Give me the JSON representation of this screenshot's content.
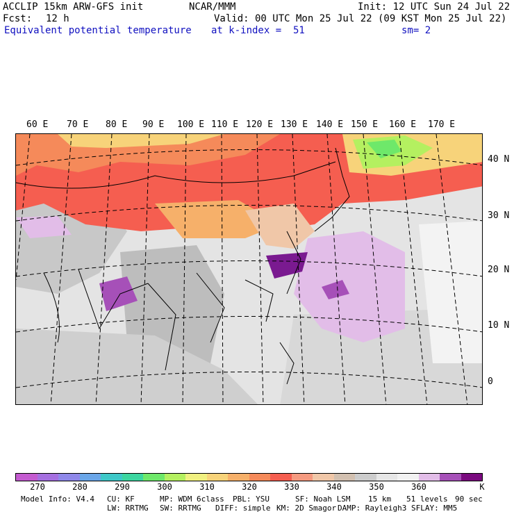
{
  "header": {
    "model_line": "ACCLIP 15km ARW-GFS init",
    "org": "NCAR/MMM",
    "init": "Init: 12 UTC Sun 24 Jul 22",
    "fcst_label": "Fcst:",
    "fcst_value": "12 h",
    "valid": "Valid: 00 UTC Mon 25 Jul 22 (09 KST Mon 25 Jul 22)",
    "field": "Equivalent potential temperature",
    "level": "at k-index =  51",
    "smoothing": "sm= 2"
  },
  "map": {
    "longitude_labels": [
      "60 E",
      "70 E",
      "80 E",
      "90 E",
      "100 E",
      "110 E",
      "120 E",
      "130 E",
      "140 E",
      "150 E",
      "160 E",
      "170 E"
    ],
    "latitude_labels": [
      "40 N",
      "30 N",
      "20 N",
      "10 N",
      "0"
    ]
  },
  "colorbar": {
    "colors": [
      "#c45bd0",
      "#a56fe0",
      "#8f88ea",
      "#6aa6e8",
      "#3ec8c8",
      "#3cd6a0",
      "#6ee86a",
      "#b4f060",
      "#f0f080",
      "#f7d37a",
      "#f6b06a",
      "#f58a5a",
      "#f55e50",
      "#f59a80",
      "#f0c7a8",
      "#d2c0b0",
      "#cccccc",
      "#e6e6e6",
      "#f2f2f2",
      "#e2bde8",
      "#a650b8",
      "#7a0a7f"
    ],
    "labels": [
      "270",
      "280",
      "290",
      "300",
      "310",
      "320",
      "330",
      "340",
      "350",
      "360",
      "K"
    ]
  },
  "footer": {
    "line1": [
      "Model Info: V4.4",
      "CU: KF",
      "MP: WDM 6class",
      "PBL: YSU",
      "SF: Noah LSM",
      "15 km",
      "51 levels",
      "90 sec"
    ],
    "line2": [
      "LW: RRTMG",
      "SW: RRTMG",
      "DIFF: simple",
      "KM: 2D Smagor",
      "DAMP: Rayleigh3",
      "SFLAY: MM5"
    ]
  }
}
